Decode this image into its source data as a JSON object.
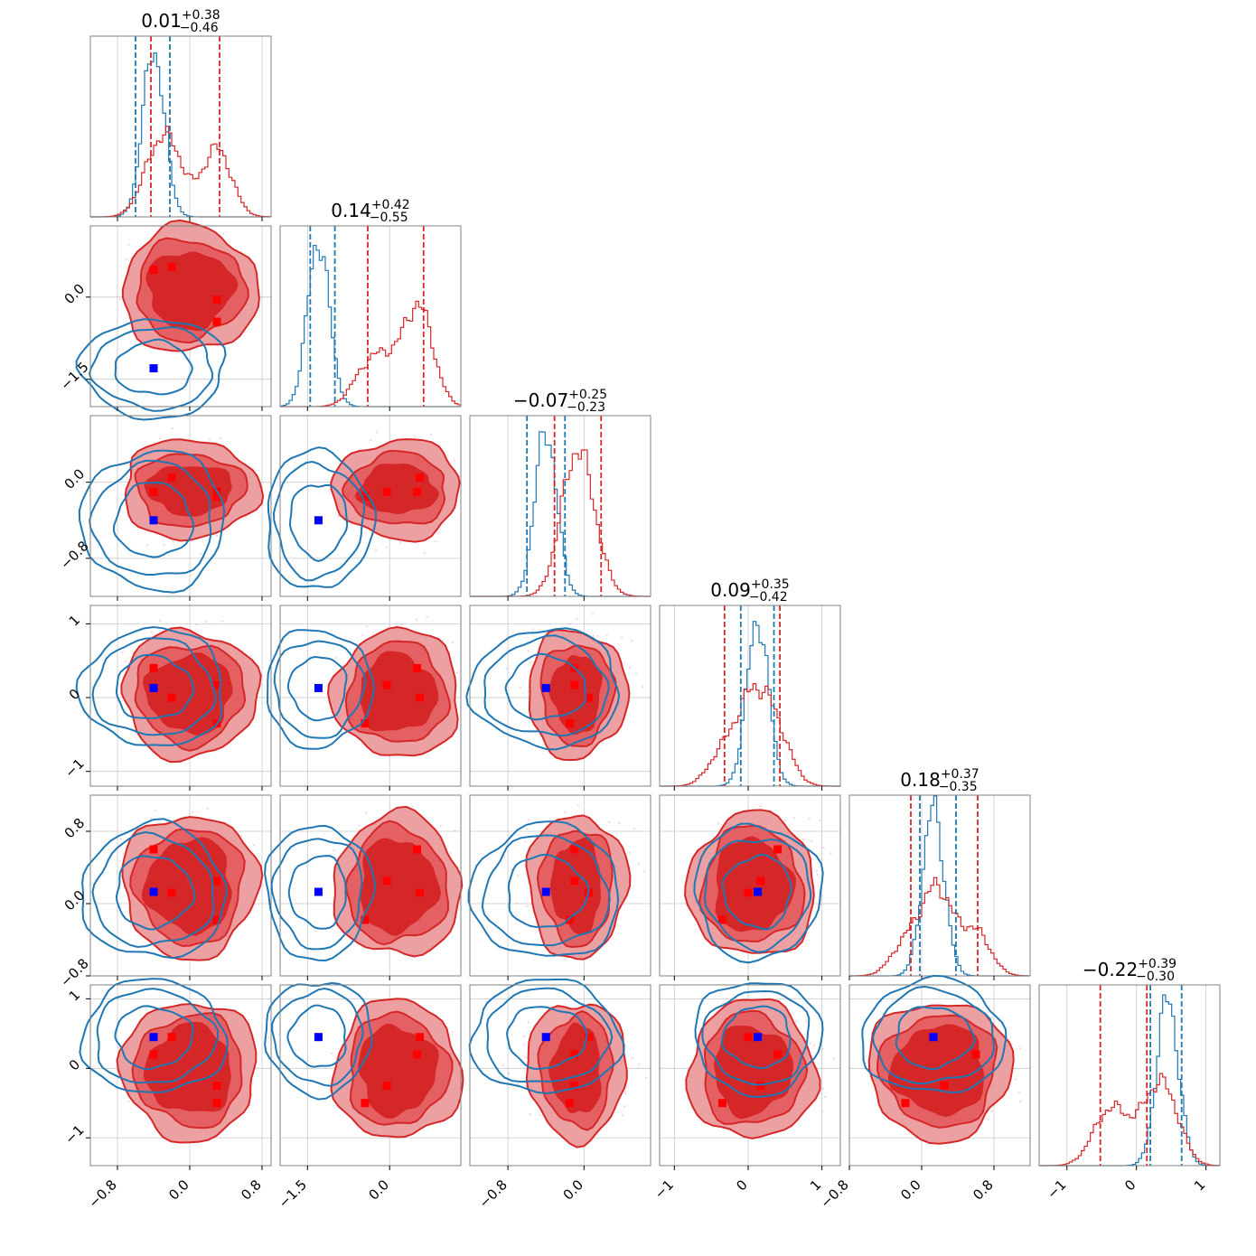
{
  "chart_data": {
    "type": "corner",
    "n_params": 6,
    "colors": {
      "blue": "#1f77b4",
      "red": "#d62728",
      "marker_blue": "#0000ff",
      "marker_red": "#ff0000"
    },
    "grid": true,
    "titles": [
      {
        "value": "0.01",
        "plus": "+0.38",
        "minus": "−0.46"
      },
      {
        "value": "0.14",
        "plus": "+0.42",
        "minus": "−0.55"
      },
      {
        "value": "−0.07",
        "plus": "+0.25",
        "minus": "−0.23"
      },
      {
        "value": "0.09",
        "plus": "+0.35",
        "minus": "−0.42"
      },
      {
        "value": "0.18",
        "plus": "+0.37",
        "minus": "−0.35"
      },
      {
        "value": "−0.22",
        "plus": "+0.39",
        "minus": "−0.30"
      }
    ],
    "params": [
      {
        "range": [
          -1.1,
          0.9
        ],
        "ticks": [
          -0.8,
          0.0,
          0.8
        ],
        "tick_labels": [
          "−0.8",
          "0.0",
          "0.8"
        ]
      },
      {
        "range": [
          -2.0,
          1.3
        ],
        "ticks": [
          -1.5,
          0.0
        ],
        "tick_labels": [
          "−1.5",
          "0.0"
        ]
      },
      {
        "range": [
          -1.2,
          0.7
        ],
        "ticks": [
          -0.8,
          0.0
        ],
        "tick_labels": [
          "−0.8",
          "0.0"
        ]
      },
      {
        "range": [
          -1.2,
          1.25
        ],
        "ticks": [
          -1,
          0,
          1
        ],
        "tick_labels": [
          "−1",
          "0",
          "1"
        ]
      },
      {
        "range": [
          -0.8,
          1.2
        ],
        "ticks": [
          -0.8,
          0.0,
          0.8
        ],
        "tick_labels": [
          "−0.8",
          "0.0",
          "0.8"
        ]
      },
      {
        "range": [
          -1.4,
          1.2
        ],
        "ticks": [
          -1,
          0,
          1
        ],
        "tick_labels": [
          "−1",
          "0",
          "1"
        ]
      }
    ],
    "blue_centers": [
      -0.4,
      -1.3,
      -0.4,
      0.13,
      0.13,
      0.45
    ],
    "red_centers": [
      [
        -0.4,
        -0.2,
        0.3,
        0.3
      ],
      [
        0.5,
        0.55,
        -0.05,
        -0.45
      ],
      [
        -0.1,
        0.05,
        -0.1,
        -0.15
      ],
      [
        0.4,
        0.0,
        0.17,
        -0.35
      ],
      [
        0.6,
        0.12,
        0.25,
        -0.18
      ],
      [
        0.2,
        0.45,
        -0.25,
        -0.5
      ]
    ],
    "quantiles": {
      "blue": [
        [
          -0.6,
          -0.22
        ],
        [
          -1.45,
          -1.0
        ],
        [
          -0.6,
          -0.2
        ],
        [
          -0.1,
          0.35
        ],
        [
          -0.02,
          0.38
        ],
        [
          0.2,
          0.65
        ]
      ],
      "red": [
        [
          -0.43,
          0.33
        ],
        [
          -0.4,
          0.62
        ],
        [
          -0.31,
          0.18
        ],
        [
          -0.32,
          0.43
        ],
        [
          -0.12,
          0.62
        ],
        [
          -0.52,
          0.15
        ]
      ]
    }
  }
}
